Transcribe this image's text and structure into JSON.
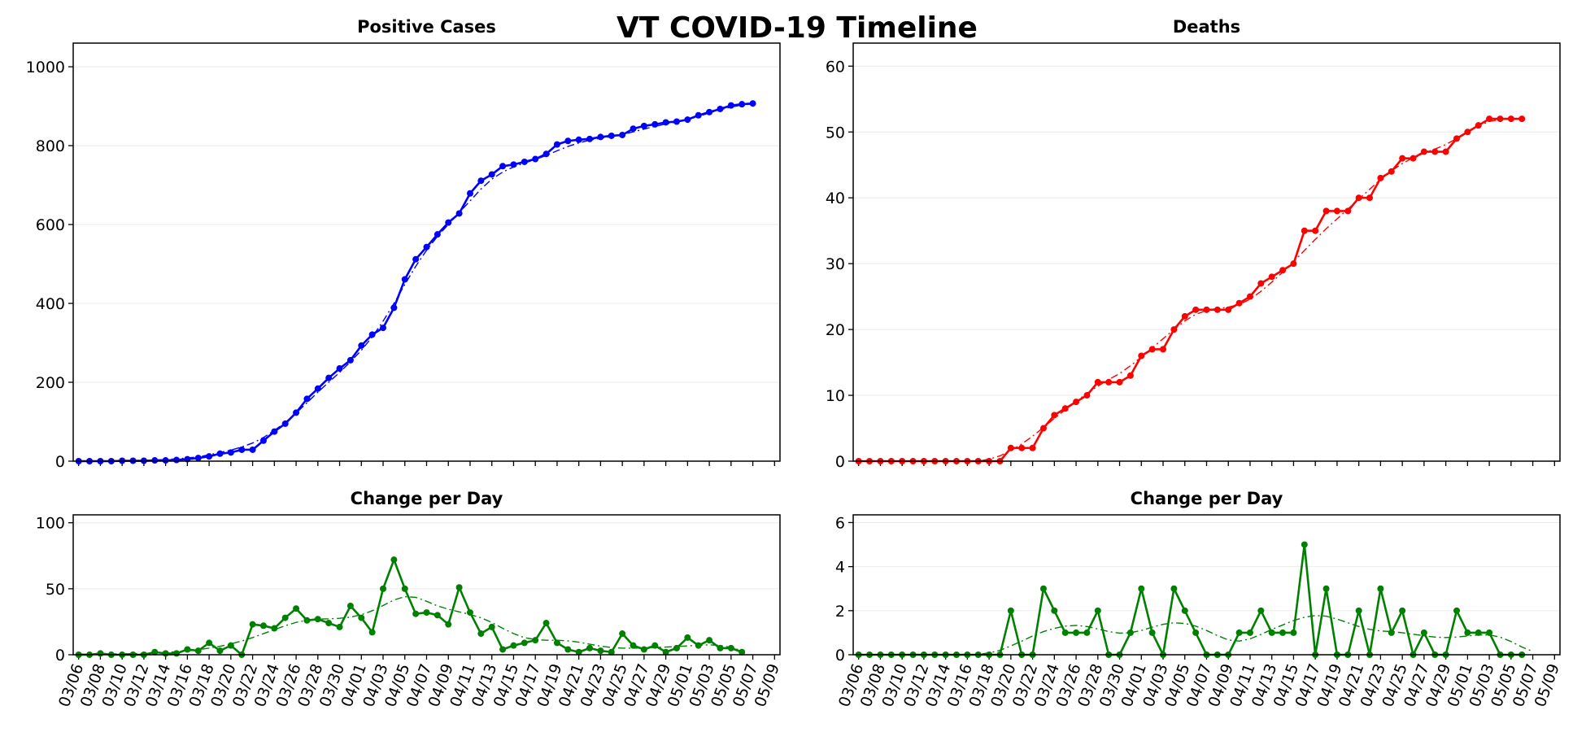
{
  "title": "VT COVID-19 Timeline",
  "colors": {
    "cases": "#0000ff",
    "deaths": "#ff0000",
    "change": "#008000"
  },
  "chart_data": [
    {
      "id": "cases",
      "type": "line",
      "title": "Positive Cases",
      "color": "cases",
      "x_start": "03/06",
      "xlim": [
        -0.5,
        64.5
      ],
      "ylim": [
        0,
        1060
      ],
      "yticks": [
        0,
        200,
        400,
        600,
        800,
        1000
      ],
      "grid": "horizontal",
      "series": [
        {
          "style": "markers",
          "values": [
            0,
            0,
            0,
            0,
            1,
            1,
            1,
            2,
            2,
            3,
            5,
            8,
            12,
            19,
            22,
            29,
            29,
            52,
            75,
            95,
            123,
            158,
            184,
            211,
            235,
            256,
            293,
            321,
            338,
            389,
            461,
            512,
            543,
            575,
            605,
            628,
            679,
            711,
            727,
            748,
            752,
            759,
            766,
            779,
            803,
            812,
            815,
            817,
            822,
            825,
            827,
            843,
            850,
            854,
            859,
            861,
            866,
            877,
            885,
            893,
            902,
            905,
            907
          ]
        },
        {
          "style": "dashdot",
          "values": [
            0,
            0,
            0,
            0,
            1,
            1,
            2,
            3,
            4,
            6,
            8,
            11,
            16,
            22,
            28,
            36,
            46,
            60,
            78,
            98,
            122,
            148,
            175,
            200,
            225,
            252,
            281,
            315,
            355,
            400,
            448,
            494,
            535,
            570,
            600,
            630,
            660,
            690,
            715,
            733,
            746,
            756,
            765,
            775,
            787,
            798,
            807,
            814,
            819,
            823,
            828,
            835,
            842,
            849,
            855,
            860,
            866,
            874,
            883,
            891,
            898,
            903,
            906
          ]
        }
      ]
    },
    {
      "id": "deaths",
      "type": "line",
      "title": "Deaths",
      "color": "deaths",
      "x_start": "03/06",
      "xlim": [
        -0.5,
        64.5
      ],
      "ylim": [
        0,
        63.5
      ],
      "yticks": [
        0,
        10,
        20,
        30,
        40,
        50,
        60
      ],
      "grid": "horizontal",
      "series": [
        {
          "style": "markers",
          "values": [
            0,
            0,
            0,
            0,
            0,
            0,
            0,
            0,
            0,
            0,
            0,
            0,
            0,
            0,
            2,
            2,
            2,
            5,
            7,
            8,
            9,
            10,
            12,
            12,
            12,
            13,
            16,
            17,
            17,
            20,
            22,
            23,
            23,
            23,
            23,
            24,
            25,
            27,
            28,
            29,
            30,
            35,
            35,
            38,
            38,
            38,
            40,
            40,
            43,
            44,
            46,
            46,
            47,
            47,
            47,
            49,
            50,
            51,
            52,
            52,
            52,
            52
          ]
        },
        {
          "style": "dashdot",
          "values": [
            0,
            0,
            0,
            0,
            0,
            0,
            0,
            0,
            0,
            0,
            0,
            0,
            0.3,
            0.8,
            1.6,
            2.6,
            3.8,
            5.1,
            6.5,
            7.8,
            9.1,
            10.3,
            11.4,
            12.4,
            13.3,
            14.5,
            15.8,
            17.2,
            18.6,
            20.0,
            21.3,
            22.3,
            22.9,
            23.2,
            23.4,
            23.8,
            24.6,
            25.8,
            27.2,
            28.7,
            30.3,
            32.0,
            33.7,
            35.3,
            36.8,
            38.3,
            39.8,
            41.3,
            42.8,
            44.1,
            45.2,
            46.1,
            46.8,
            47.4,
            48.1,
            49.0,
            50.0,
            50.9,
            51.6,
            51.9,
            52.0,
            52.0
          ]
        }
      ]
    },
    {
      "id": "cases-change",
      "type": "line",
      "title": "Change per Day",
      "color": "change",
      "x_start": "03/06",
      "xlim": [
        -0.5,
        64.5
      ],
      "ylim": [
        0,
        106
      ],
      "yticks": [
        0,
        50,
        100
      ],
      "grid": "horizontal",
      "series": [
        {
          "style": "markers",
          "values": [
            0,
            0,
            1,
            0,
            0,
            0,
            0,
            2,
            1,
            1,
            4,
            3,
            9,
            3,
            7,
            0,
            23,
            22,
            20,
            28,
            35,
            26,
            27,
            24,
            21,
            37,
            28,
            17,
            50,
            72,
            50,
            31,
            32,
            30,
            23,
            51,
            32,
            16,
            21,
            4,
            7,
            9,
            11,
            24,
            9,
            4,
            2,
            5,
            3,
            2,
            16,
            7,
            4,
            7,
            2,
            5,
            13,
            7,
            11,
            5,
            5,
            2
          ]
        },
        {
          "style": "dashdot",
          "values": [
            0.5,
            0.5,
            0.6,
            0.6,
            0.7,
            0.8,
            1,
            1.3,
            1.7,
            2.2,
            2.9,
            3.8,
            5,
            6.4,
            8.2,
            10.4,
            13,
            16,
            19,
            22,
            24.5,
            26.2,
            27,
            27.2,
            27.6,
            28.5,
            30.3,
            33.3,
            37.3,
            41.5,
            44,
            43.5,
            40.5,
            37,
            34.5,
            32.5,
            30.5,
            28,
            24.5,
            20,
            16,
            13,
            11.5,
            11,
            11,
            10.5,
            9.5,
            8,
            6.5,
            5.5,
            5,
            5,
            5.2,
            5.5,
            5.8,
            6.2,
            6.7,
            7.2,
            7.5,
            7,
            5.5,
            3
          ]
        }
      ]
    },
    {
      "id": "deaths-change",
      "type": "line",
      "title": "Change per Day",
      "color": "change",
      "x_start": "03/06",
      "xlim": [
        -0.5,
        64.5
      ],
      "ylim": [
        0,
        6.35
      ],
      "yticks": [
        0,
        2,
        4,
        6
      ],
      "grid": "horizontal",
      "series": [
        {
          "style": "markers",
          "values": [
            0,
            0,
            0,
            0,
            0,
            0,
            0,
            0,
            0,
            0,
            0,
            0,
            0,
            0,
            2,
            0,
            0,
            3,
            2,
            1,
            1,
            1,
            2,
            0,
            0,
            1,
            3,
            1,
            0,
            3,
            2,
            1,
            0,
            0,
            0,
            1,
            1,
            2,
            1,
            1,
            1,
            5,
            0,
            3,
            0,
            0,
            2,
            0,
            3,
            1,
            2,
            0,
            1,
            0,
            0,
            2,
            1,
            1,
            1,
            0,
            0,
            0
          ]
        },
        {
          "style": "dashdot",
          "values": [
            0,
            0,
            0,
            0,
            0,
            0,
            0,
            0,
            0,
            0,
            0,
            0.02,
            0.08,
            0.2,
            0.4,
            0.62,
            0.85,
            1.05,
            1.2,
            1.3,
            1.33,
            1.28,
            1.17,
            1.05,
            0.98,
            1.0,
            1.1,
            1.25,
            1.38,
            1.45,
            1.42,
            1.3,
            1.1,
            0.87,
            0.67,
            0.62,
            0.72,
            0.92,
            1.15,
            1.35,
            1.55,
            1.7,
            1.78,
            1.75,
            1.62,
            1.45,
            1.28,
            1.15,
            1.08,
            1.05,
            1.0,
            0.93,
            0.86,
            0.8,
            0.78,
            0.8,
            0.85,
            0.9,
            0.9,
            0.8,
            0.6,
            0.35,
            0.15
          ]
        }
      ]
    }
  ],
  "xticks": [
    "03/06",
    "03/08",
    "03/10",
    "03/12",
    "03/14",
    "03/16",
    "03/18",
    "03/20",
    "03/22",
    "03/24",
    "03/26",
    "03/28",
    "03/30",
    "04/01",
    "04/03",
    "04/05",
    "04/07",
    "04/09",
    "04/11",
    "04/13",
    "04/15",
    "04/17",
    "04/19",
    "04/21",
    "04/23",
    "04/25",
    "04/27",
    "04/29",
    "05/01",
    "05/03",
    "05/05",
    "05/07",
    "05/09"
  ]
}
